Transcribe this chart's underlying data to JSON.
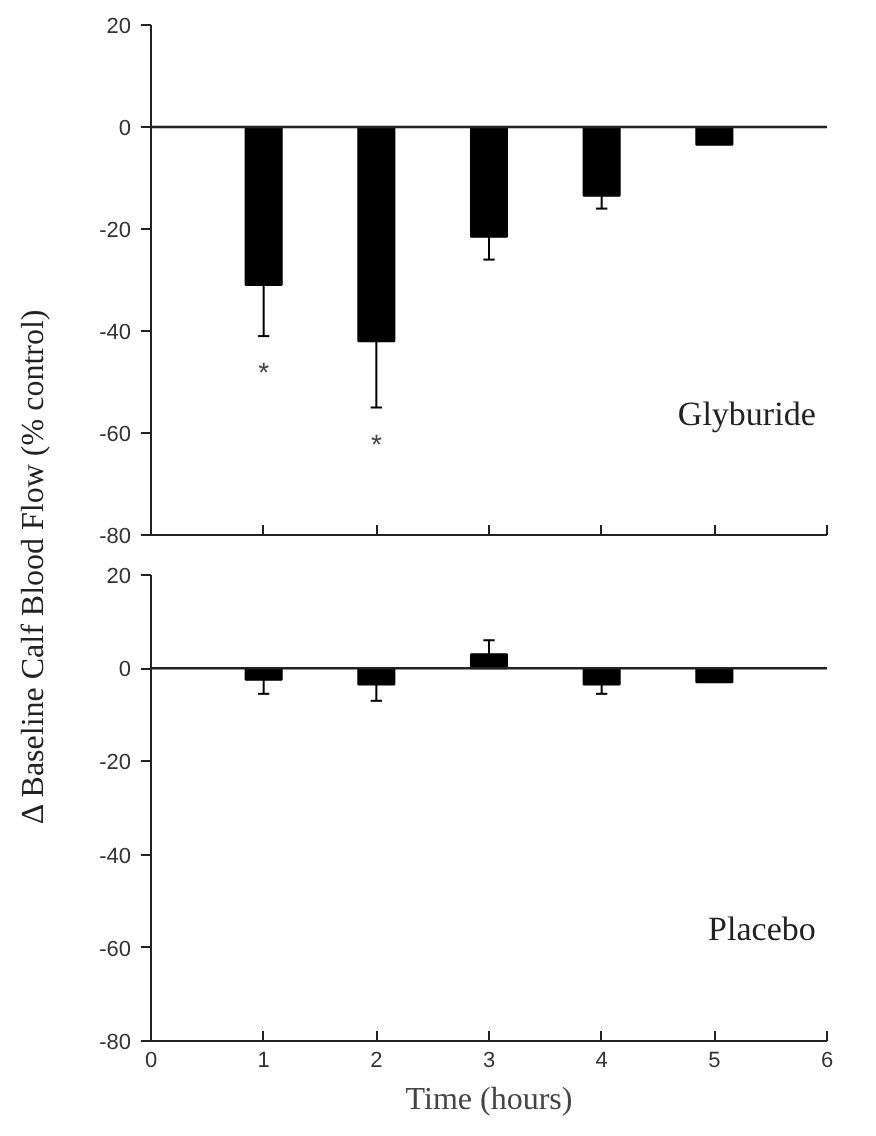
{
  "chart_data": [
    {
      "type": "bar",
      "title": "Glyburide",
      "ylabel": "Δ Baseline Calf Blood Flow (% control)",
      "x": [
        1,
        2,
        3,
        4,
        5
      ],
      "values": [
        -31,
        -42,
        -21.5,
        -13.5,
        -3.5
      ],
      "color": "#000000",
      "errors": [
        [
          -41,
          -31
        ],
        [
          -55,
          -42
        ],
        [
          -26,
          -21.5
        ],
        [
          -16,
          -13.5
        ],
        null
      ],
      "annotations": [
        "*",
        "*"
      ],
      "ref_lines": [
        {
          "axis": "y",
          "value": 0
        }
      ],
      "xlim": [
        0,
        6
      ],
      "xticks": [
        0,
        1,
        2,
        3,
        4,
        5,
        6
      ],
      "ylim": [
        -80,
        20
      ],
      "yticks": [
        20,
        0,
        -20,
        -40,
        -60,
        -80
      ],
      "tick_labels": "y",
      "grid": false
    },
    {
      "type": "bar",
      "title": "Placebo",
      "xlabel": "Time (hours)",
      "x": [
        1,
        2,
        3,
        4,
        5
      ],
      "values": [
        -2.5,
        -3.5,
        3,
        -3.5,
        -3
      ],
      "color": "#000000",
      "errors": [
        [
          -5.5,
          -2.5
        ],
        [
          -7,
          -3.5
        ],
        [
          3,
          6
        ],
        [
          -5.5,
          -3.5
        ],
        null
      ],
      "ref_lines": [
        {
          "axis": "y",
          "value": 0
        }
      ],
      "xlim": [
        0,
        6
      ],
      "xticks": [
        0,
        1,
        2,
        3,
        4,
        5,
        6
      ],
      "ylim": [
        -80,
        20
      ],
      "yticks": [
        20,
        0,
        -20,
        -40,
        -60,
        -80
      ],
      "grid": false
    }
  ]
}
